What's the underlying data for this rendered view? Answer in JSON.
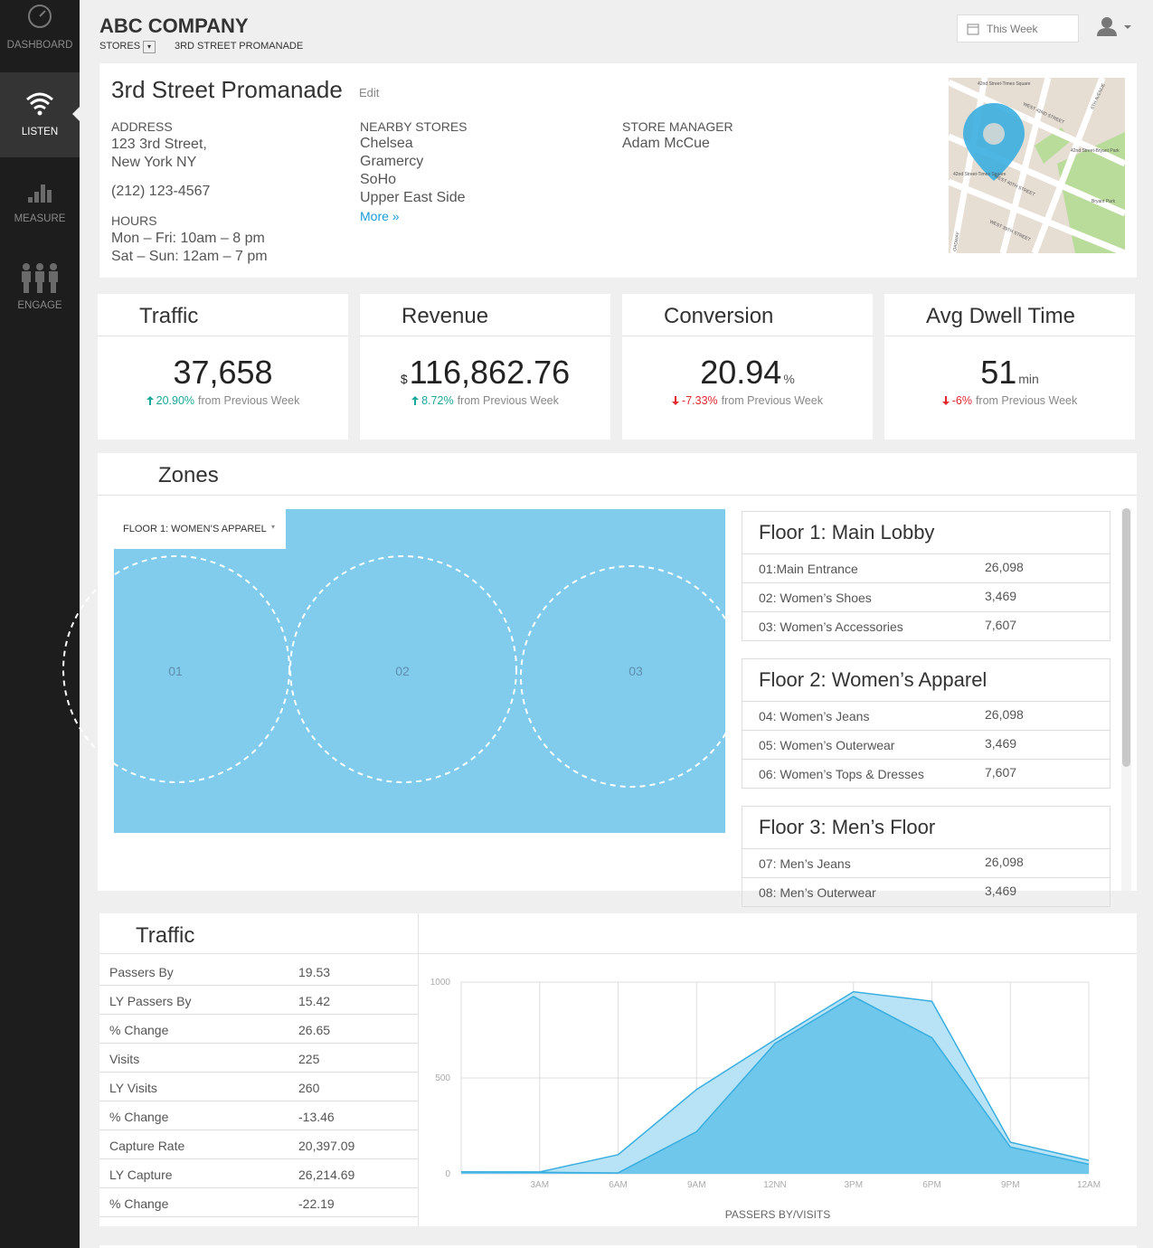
{
  "sidebar": {
    "items": [
      {
        "label": "DASHBOARD"
      },
      {
        "label": "LISTEN"
      },
      {
        "label": "MEASURE"
      },
      {
        "label": "ENGAGE"
      }
    ],
    "active": 1
  },
  "header": {
    "company": "ABC COMPANY",
    "breadcrumb": [
      "STORES",
      "3RD STREET PROMANADE"
    ],
    "date_range": "This Week"
  },
  "store": {
    "name": "3rd Street Promanade",
    "edit": "Edit",
    "address_label": "ADDRESS",
    "address": [
      "123 3rd Street,",
      "New York NY"
    ],
    "phone": "(212) 123-4567",
    "hours_label": "HOURS",
    "hours": [
      "Mon – Fri: 10am – 8 pm",
      "Sat – Sun: 12am – 7 pm"
    ],
    "nearby_label": "NEARBY STORES",
    "nearby": [
      "Chelsea",
      "Gramercy",
      "SoHo",
      "Upper East Side"
    ],
    "more": "More »",
    "manager_label": "STORE MANAGER",
    "manager": "Adam McCue"
  },
  "map": {
    "labels": [
      "42nd Street-Times Square",
      "WEST 42ND STREET",
      "6TH AVENUE",
      "42nd Street-Bryant Park",
      "WEST 40TH STREET",
      "42nd Street-Times Square",
      "WEST 39TH STREET",
      "Bryant Park",
      "OADWAY"
    ]
  },
  "kpis": [
    {
      "title": "Traffic",
      "value": "37,658",
      "change": "20.90%",
      "trend": "up",
      "compare": "from Previous Week"
    },
    {
      "title": "Revenue",
      "prefix": "$",
      "value": "116,862.76",
      "change": "8.72%",
      "trend": "up",
      "compare": "from Previous Week"
    },
    {
      "title": "Conversion",
      "value": "20.94",
      "unit": "%",
      "change": "-7.33%",
      "trend": "down",
      "compare": "from Previous Week"
    },
    {
      "title": "Avg Dwell Time",
      "value": "51",
      "unit": "min",
      "change": "-6%",
      "trend": "down",
      "compare": "from Previous Week"
    }
  ],
  "zones": {
    "title": "Zones",
    "floor_select": "FLOOR 1: WOMEN’S APPAREL",
    "zone_labels": [
      "01",
      "02",
      "03"
    ],
    "floors": [
      {
        "title": "Floor 1: Main Lobby",
        "rows": [
          [
            "01:Main Entrance",
            "26,098"
          ],
          [
            "02: Women’s Shoes",
            "3,469"
          ],
          [
            "03: Women’s Accessories",
            "7,607"
          ]
        ]
      },
      {
        "title": "Floor 2: Women’s Apparel",
        "rows": [
          [
            "04: Women’s Jeans",
            "26,098"
          ],
          [
            "05: Women’s Outerwear",
            "3,469"
          ],
          [
            "06: Women’s Tops & Dresses",
            "7,607"
          ]
        ]
      },
      {
        "title": "Floor 3: Men’s Floor",
        "rows": [
          [
            "07: Men’s Jeans",
            "26,098"
          ],
          [
            "08: Men’s Outerwear",
            "3,469"
          ]
        ]
      }
    ]
  },
  "traffic": {
    "title": "Traffic",
    "rows": [
      [
        "Passers By",
        "19.53"
      ],
      [
        "LY Passers By",
        "15.42"
      ],
      [
        "% Change",
        "26.65"
      ],
      [
        "Visits",
        "225"
      ],
      [
        "LY Visits",
        "260"
      ],
      [
        "% Change",
        "-13.46"
      ],
      [
        "Capture Rate",
        "20,397.09"
      ],
      [
        "LY Capture",
        "26,214.69"
      ],
      [
        "% Change",
        "-22.19"
      ]
    ]
  },
  "chart_data": {
    "type": "area",
    "x": [
      0,
      3,
      6,
      9,
      12,
      15,
      18,
      21,
      24
    ],
    "xlim": [
      0,
      24
    ],
    "xticks": [
      {
        "value": 3,
        "label": "3AM"
      },
      {
        "value": 6,
        "label": "6AM"
      },
      {
        "value": 9,
        "label": "9AM"
      },
      {
        "value": 12,
        "label": "12NN"
      },
      {
        "value": 15,
        "label": "3PM"
      },
      {
        "value": 18,
        "label": "6PM"
      },
      {
        "value": 21,
        "label": "9PM"
      },
      {
        "value": 24,
        "label": "12AM"
      }
    ],
    "ylim": [
      0,
      1000
    ],
    "yticks": [
      0,
      500,
      1000
    ],
    "xlabel": "PASSERS BY/VISITS",
    "grid": true,
    "series": [
      {
        "color": "#3aaedf",
        "fill": "#b8e3f6",
        "values": [
          10,
          10,
          100,
          440,
          700,
          950,
          900,
          165,
          70
        ]
      },
      {
        "color": "#3aaedf",
        "fill": "#6fc7ec",
        "values": [
          10,
          8,
          5,
          220,
          680,
          925,
          710,
          140,
          50
        ]
      }
    ]
  }
}
